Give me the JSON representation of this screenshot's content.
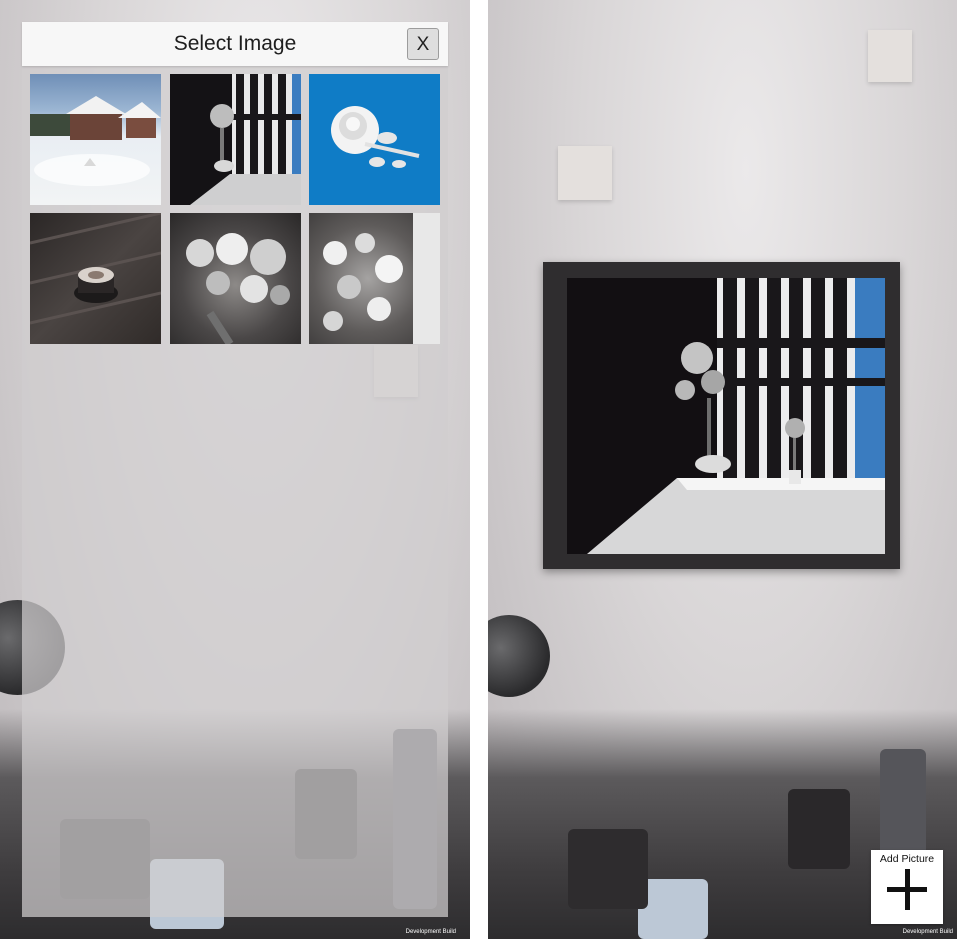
{
  "left_screen": {
    "dialog": {
      "title": "Select Image",
      "close_label": "X"
    },
    "thumbnails": [
      {
        "name": "snowy-house",
        "subject": "snow-landscape"
      },
      {
        "name": "window-flowers",
        "subject": "window-vase"
      },
      {
        "name": "white-rose",
        "subject": "rose-on-blue"
      },
      {
        "name": "latte-cup",
        "subject": "coffee-on-table"
      },
      {
        "name": "flower-bouquet",
        "subject": "bouquet"
      },
      {
        "name": "daisy-bouquet",
        "subject": "bouquet-daisies"
      }
    ],
    "dev_label": "Development Build"
  },
  "right_screen": {
    "add_picture_label": "Add Picture",
    "add_icon": "plus-icon",
    "dev_label": "Development Build"
  },
  "colors": {
    "rose_background": "#0f7cc6",
    "panel_header": "#f7f7f7"
  }
}
